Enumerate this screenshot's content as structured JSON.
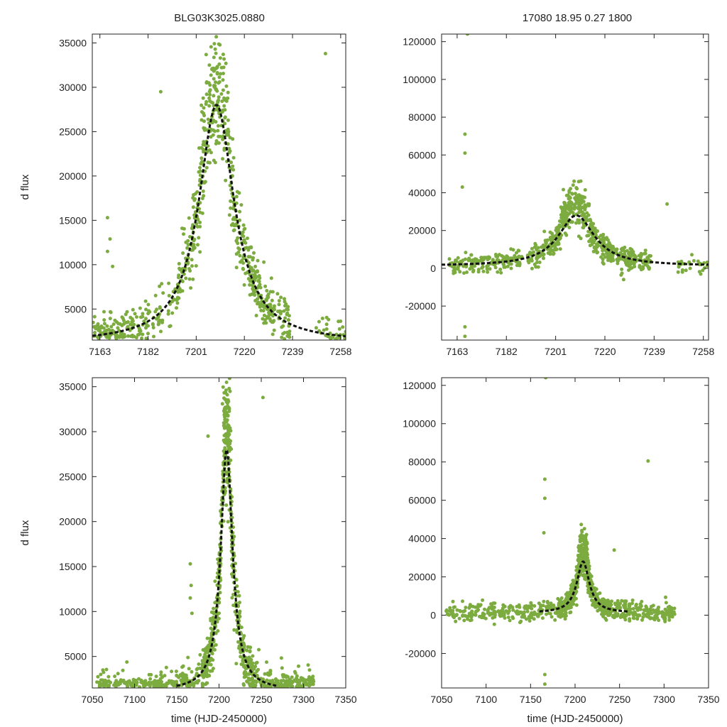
{
  "figure_titles": {
    "left": "BLG03K3025.0880",
    "right": "17080  18.95  0.27  1800"
  },
  "colors": {
    "data_points": "#7cab3f",
    "model_line": "#111111",
    "axes": "#222222"
  },
  "chart_data": [
    {
      "id": "top-left",
      "type": "scatter",
      "title": "BLG03K3025.0880",
      "xlabel": "",
      "ylabel": "d flux",
      "xlim": [
        7160,
        7260
      ],
      "ylim": [
        1500,
        36000
      ],
      "xticks": [
        7163,
        7182,
        7201,
        7220,
        7239,
        7258
      ],
      "yticks": [
        5000,
        10000,
        15000,
        20000,
        25000,
        30000,
        35000
      ],
      "series": [
        {
          "name": "photometry",
          "kind": "points"
        },
        {
          "name": "model",
          "kind": "dashed-line",
          "t0": 7209,
          "peak": 28000,
          "base": 1200,
          "tE": 8.5,
          "x_range": [
            7160,
            7260
          ]
        }
      ]
    },
    {
      "id": "top-right",
      "type": "scatter",
      "title": "17080  18.95  0.27  1800",
      "xlabel": "",
      "ylabel": "",
      "xlim": [
        7157,
        7260
      ],
      "ylim": [
        -38000,
        124000
      ],
      "xticks": [
        7163,
        7182,
        7201,
        7220,
        7239,
        7258
      ],
      "yticks": [
        -20000,
        0,
        20000,
        40000,
        60000,
        80000,
        100000,
        120000
      ],
      "series": [
        {
          "name": "photometry",
          "kind": "points"
        },
        {
          "name": "model",
          "kind": "dashed-line",
          "t0": 7209,
          "peak": 28000,
          "base": 1200,
          "tE": 8.5,
          "x_range": [
            7157,
            7260
          ]
        }
      ]
    },
    {
      "id": "bottom-left",
      "type": "scatter",
      "title": "",
      "xlabel": "time (HJD-2450000)",
      "ylabel": "d flux",
      "xlim": [
        7050,
        7350
      ],
      "ylim": [
        1500,
        36000
      ],
      "xticks": [
        7050,
        7100,
        7150,
        7200,
        7250,
        7300,
        7350
      ],
      "yticks": [
        5000,
        10000,
        15000,
        20000,
        25000,
        30000,
        35000
      ],
      "series": [
        {
          "name": "photometry",
          "kind": "points"
        },
        {
          "name": "model",
          "kind": "dashed-line",
          "t0": 7209,
          "peak": 28000,
          "base": 1200,
          "tE": 8.5,
          "x_range": [
            7150,
            7270
          ]
        }
      ]
    },
    {
      "id": "bottom-right",
      "type": "scatter",
      "title": "",
      "xlabel": "time (HJD-2450000)",
      "ylabel": "",
      "xlim": [
        7050,
        7350
      ],
      "ylim": [
        -38000,
        124000
      ],
      "xticks": [
        7050,
        7100,
        7150,
        7200,
        7250,
        7300,
        7350
      ],
      "yticks": [
        -20000,
        0,
        20000,
        40000,
        60000,
        80000,
        100000,
        120000
      ],
      "series": [
        {
          "name": "photometry",
          "kind": "points"
        },
        {
          "name": "model",
          "kind": "dashed-line",
          "t0": 7209,
          "peak": 28000,
          "base": 1200,
          "tE": 8.5,
          "x_range": [
            7160,
            7260
          ]
        }
      ]
    }
  ]
}
